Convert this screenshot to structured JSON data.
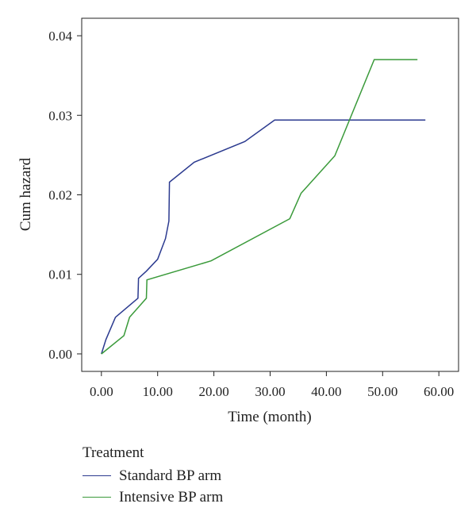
{
  "chart_data": {
    "type": "line",
    "title": "",
    "xlabel": "Time (month)",
    "ylabel": "Cum hazard",
    "xlim": [
      -3.5,
      63.5
    ],
    "ylim": [
      -0.0022,
      0.0422
    ],
    "x_ticks": [
      0,
      10,
      20,
      30,
      40,
      50,
      60
    ],
    "x_tick_labels": [
      "0.00",
      "10.00",
      "20.00",
      "30.00",
      "40.00",
      "50.00",
      "60.00"
    ],
    "y_ticks": [
      0,
      0.01,
      0.02,
      0.03,
      0.04
    ],
    "y_tick_labels": [
      "0.00",
      "0.01",
      "0.02",
      "0.03",
      "0.04"
    ],
    "grid": false,
    "legend_title": "Treatment",
    "legend_placement": "bottom-left",
    "series": [
      {
        "name": "Standard BP arm",
        "color": "#2b3a8f",
        "points": [
          [
            0,
            0.0
          ],
          [
            0.8,
            0.0018
          ],
          [
            2.5,
            0.0046
          ],
          [
            6.5,
            0.007
          ],
          [
            6.6,
            0.0095
          ],
          [
            8.0,
            0.0104
          ],
          [
            10.0,
            0.0119
          ],
          [
            11.4,
            0.0145
          ],
          [
            12.0,
            0.0167
          ],
          [
            12.1,
            0.0216
          ],
          [
            16.5,
            0.0241
          ],
          [
            25.5,
            0.0267
          ],
          [
            30.8,
            0.0294
          ],
          [
            57.6,
            0.0294
          ]
        ]
      },
      {
        "name": "Intensive BP arm",
        "color": "#3a9a3a",
        "points": [
          [
            0,
            0.0
          ],
          [
            4.0,
            0.0023
          ],
          [
            5.0,
            0.0046
          ],
          [
            8.0,
            0.007
          ],
          [
            8.1,
            0.0093
          ],
          [
            19.5,
            0.0117
          ],
          [
            33.5,
            0.017
          ],
          [
            35.5,
            0.0202
          ],
          [
            41.5,
            0.0249
          ],
          [
            48.5,
            0.037
          ],
          [
            56.2,
            0.037
          ]
        ]
      }
    ]
  }
}
